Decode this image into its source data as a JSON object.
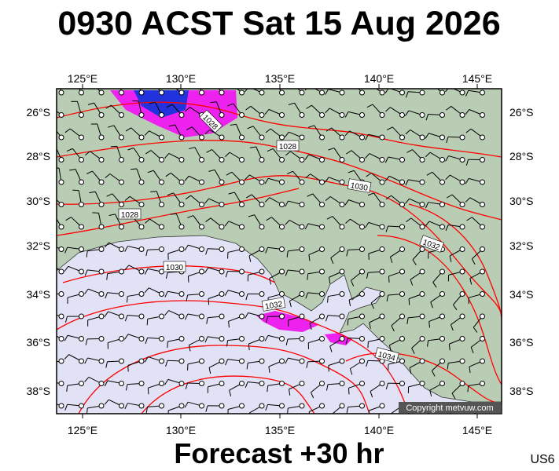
{
  "header": {
    "title": "0930 ACST Sat 15 Aug 2026"
  },
  "map": {
    "lon_labels": [
      "125°E",
      "130°E",
      "135°E",
      "140°E",
      "145°E"
    ],
    "lat_labels": [
      "26°S",
      "28°S",
      "30°S",
      "32°S",
      "34°S",
      "36°S",
      "38°S"
    ],
    "isobar_labels": [
      "1028",
      "1028",
      "1030",
      "1028",
      "1030",
      "1032",
      "1032",
      "1034"
    ],
    "copyright": "Copyright metvuw.com"
  },
  "footer": {
    "forecast": "Forecast +30 hr",
    "code": "US6"
  }
}
